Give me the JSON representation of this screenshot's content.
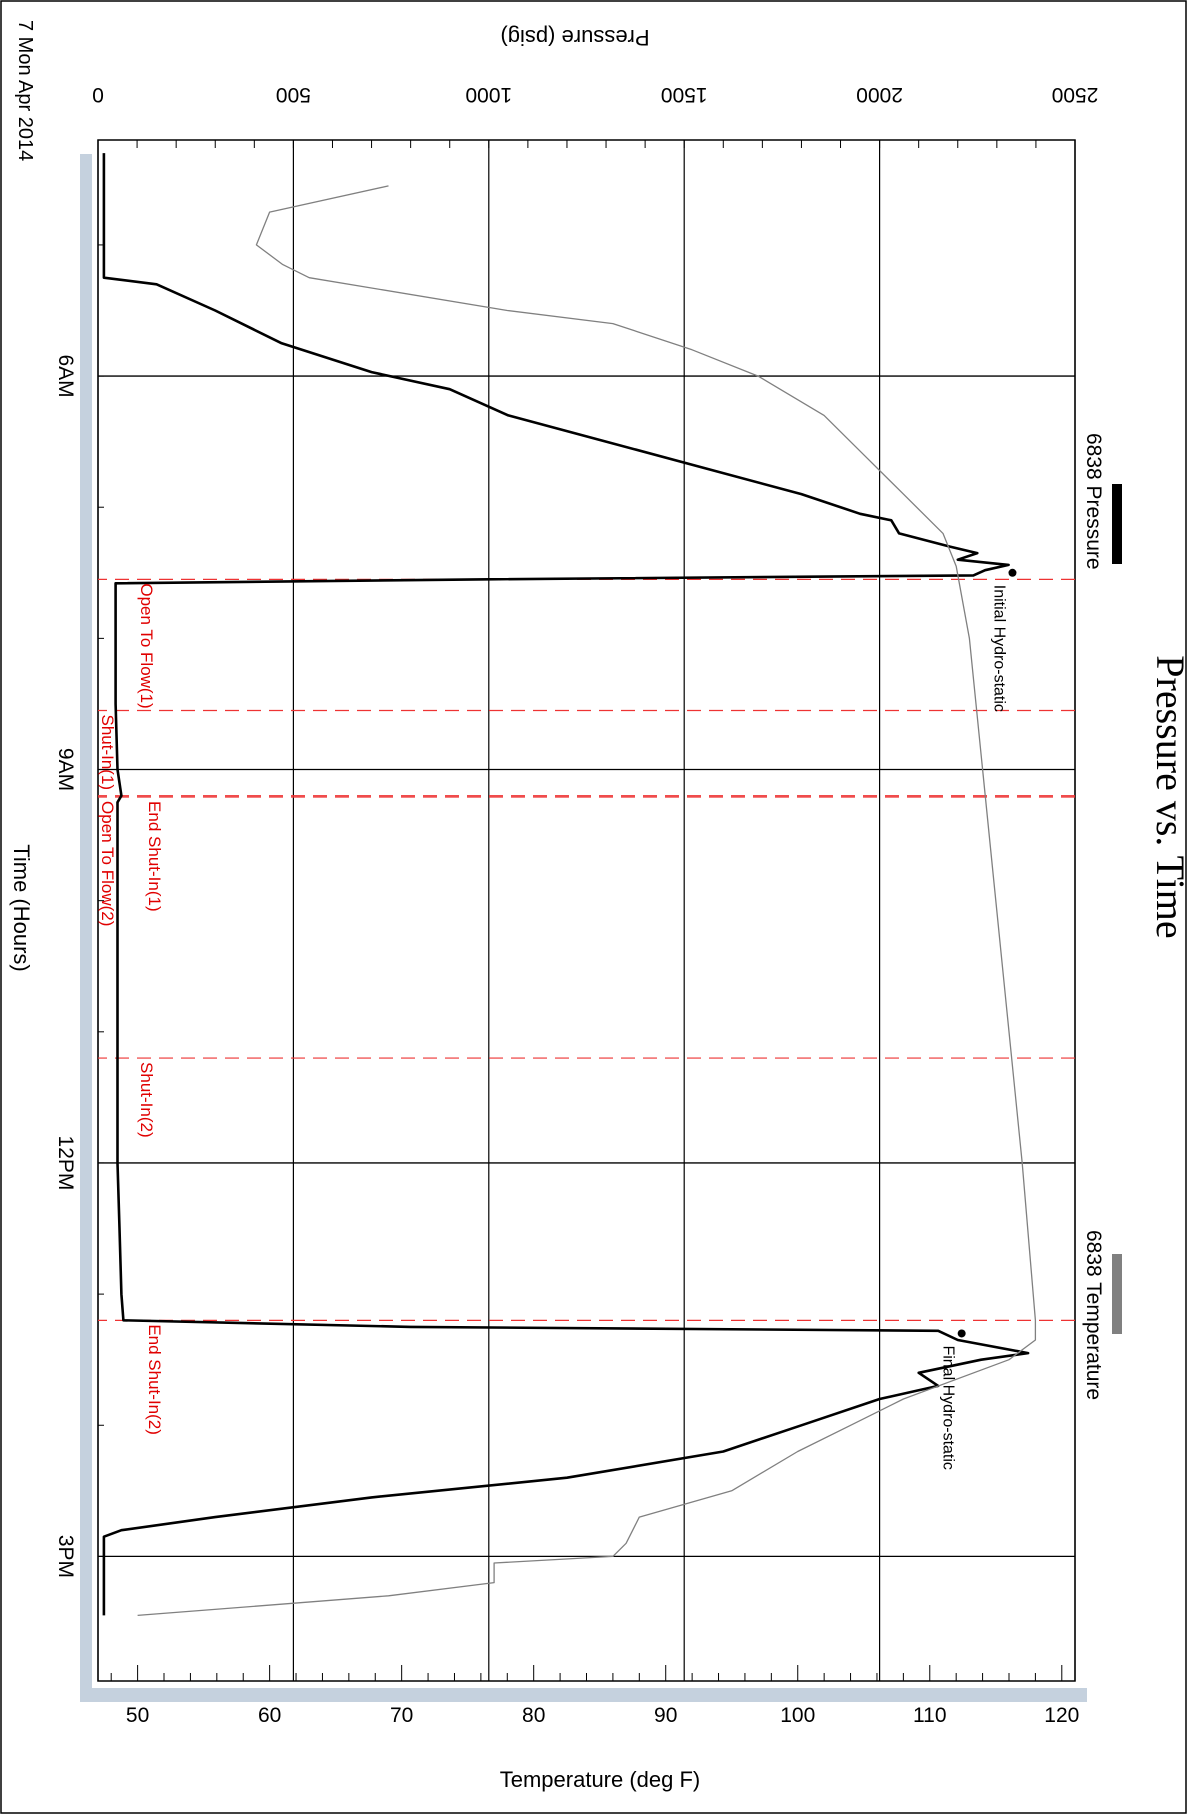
{
  "chart_data": {
    "type": "line",
    "title": "Pressure vs. Time",
    "date_label": "7 Mon Apr 2014",
    "xlabel": "Time (Hours)",
    "ylabel_left": "Pressure (psig)",
    "ylabel_right": "Temperature (deg F)",
    "x_ticks": [
      {
        "hour": 6,
        "label": "6AM"
      },
      {
        "hour": 9,
        "label": "9AM"
      },
      {
        "hour": 12,
        "label": "12PM"
      },
      {
        "hour": 15,
        "label": "3PM"
      }
    ],
    "xlim": [
      4.2,
      15.95
    ],
    "pressure_ticks": [
      0,
      500,
      1000,
      1500,
      2000,
      2500
    ],
    "pressure_lim": [
      0,
      2500
    ],
    "temperature_ticks": [
      50,
      60,
      70,
      80,
      90,
      100,
      110,
      120
    ],
    "temperature_lim": [
      47,
      121
    ],
    "grid": true,
    "legend": {
      "placement": "right",
      "entries": [
        {
          "label": "6838 Pressure",
          "color": "#000000"
        },
        {
          "label": "6838 Temperature",
          "color": "#808080"
        }
      ]
    },
    "series": [
      {
        "name": "6838 Pressure",
        "axis": "pressure",
        "color": "#000000",
        "points": [
          [
            4.3,
            15
          ],
          [
            5.0,
            15
          ],
          [
            5.25,
            15
          ],
          [
            5.3,
            150
          ],
          [
            5.5,
            300
          ],
          [
            5.75,
            470
          ],
          [
            5.97,
            700
          ],
          [
            6.1,
            900
          ],
          [
            6.3,
            1050
          ],
          [
            6.5,
            1300
          ],
          [
            6.7,
            1550
          ],
          [
            6.9,
            1800
          ],
          [
            7.05,
            1950
          ],
          [
            7.1,
            2030
          ],
          [
            7.2,
            2050
          ],
          [
            7.3,
            2180
          ],
          [
            7.35,
            2250
          ],
          [
            7.4,
            2200
          ],
          [
            7.44,
            2330
          ],
          [
            7.48,
            2270
          ],
          [
            7.52,
            2240
          ],
          [
            7.55,
            1000
          ],
          [
            7.58,
            45
          ],
          [
            8.0,
            45
          ],
          [
            8.5,
            45
          ],
          [
            9.0,
            50
          ],
          [
            9.2,
            60
          ],
          [
            9.25,
            50
          ],
          [
            10.0,
            50
          ],
          [
            11.0,
            50
          ],
          [
            12.0,
            50
          ],
          [
            12.5,
            55
          ],
          [
            13.0,
            60
          ],
          [
            13.2,
            65
          ],
          [
            13.25,
            800
          ],
          [
            13.28,
            2150
          ],
          [
            13.35,
            2200
          ],
          [
            13.45,
            2380
          ],
          [
            13.5,
            2260
          ],
          [
            13.6,
            2100
          ],
          [
            13.7,
            2150
          ],
          [
            13.8,
            2000
          ],
          [
            14.0,
            1800
          ],
          [
            14.2,
            1600
          ],
          [
            14.4,
            1200
          ],
          [
            14.55,
            700
          ],
          [
            14.7,
            300
          ],
          [
            14.8,
            60
          ],
          [
            14.85,
            15
          ],
          [
            15.0,
            15
          ],
          [
            15.45,
            15
          ]
        ]
      },
      {
        "name": "6838 Temperature",
        "axis": "temperature",
        "color": "#808080",
        "points": [
          [
            4.55,
            69
          ],
          [
            4.75,
            60
          ],
          [
            5.0,
            59
          ],
          [
            5.15,
            61
          ],
          [
            5.25,
            63
          ],
          [
            5.5,
            78
          ],
          [
            5.6,
            86
          ],
          [
            5.8,
            92
          ],
          [
            6.0,
            97
          ],
          [
            6.3,
            102
          ],
          [
            6.6,
            105
          ],
          [
            6.9,
            108
          ],
          [
            7.2,
            111
          ],
          [
            7.45,
            112
          ],
          [
            8.0,
            113
          ],
          [
            9.0,
            114
          ],
          [
            10.0,
            115
          ],
          [
            11.0,
            116
          ],
          [
            12.0,
            117
          ],
          [
            13.2,
            118
          ],
          [
            13.35,
            118
          ],
          [
            13.5,
            116
          ],
          [
            13.8,
            108
          ],
          [
            14.0,
            104
          ],
          [
            14.2,
            100
          ],
          [
            14.5,
            95
          ],
          [
            14.7,
            88
          ],
          [
            14.9,
            87
          ],
          [
            15.0,
            86
          ],
          [
            15.05,
            77
          ],
          [
            15.2,
            77
          ],
          [
            15.3,
            69
          ],
          [
            15.45,
            50
          ]
        ]
      }
    ],
    "event_lines": [
      {
        "hour": 7.55,
        "style": "dashed"
      },
      {
        "hour": 8.55,
        "style": "dashed"
      },
      {
        "hour": 9.2,
        "style": "dashed"
      },
      {
        "hour": 9.21,
        "style": "dashed"
      },
      {
        "hour": 11.2,
        "style": "dashed"
      },
      {
        "hour": 13.2,
        "style": "dashed"
      }
    ],
    "event_labels": [
      {
        "text": "Open To Flow(1)",
        "hour": 7.55,
        "psig": 100
      },
      {
        "text": "Shut-In(1)",
        "hour": 8.55,
        "psig": 0
      },
      {
        "text": "End Shut-In(1)",
        "hour": 9.21,
        "psig": 120
      },
      {
        "text": "Open To Flow(2)",
        "hour": 9.21,
        "psig": 0
      },
      {
        "text": "Shut-In(2)",
        "hour": 11.2,
        "psig": 100
      },
      {
        "text": "End Shut-In(2)",
        "hour": 13.2,
        "psig": 120
      }
    ],
    "annotations": [
      {
        "text": "Initial Hydro-static",
        "hour": 7.5,
        "psig": 2340
      },
      {
        "text": "Final Hydro-static",
        "hour": 13.3,
        "psig": 2210
      }
    ]
  }
}
